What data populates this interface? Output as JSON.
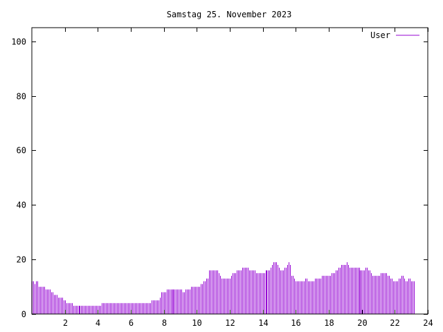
{
  "chart_data": {
    "type": "bar",
    "title": "Samstag 25. November 2023",
    "xlabel": "",
    "ylabel": "",
    "xlim": [
      0,
      24
    ],
    "ylim": [
      0,
      105
    ],
    "x_ticks": [
      2,
      4,
      6,
      8,
      10,
      12,
      14,
      16,
      18,
      20,
      22,
      24
    ],
    "y_ticks": [
      0,
      20,
      40,
      60,
      80,
      100
    ],
    "grid": false,
    "legend_position": "top-right",
    "series": [
      {
        "name": "User",
        "color": "#9400d3",
        "x_start": 0,
        "x_step": 0.0833,
        "values": [
          12,
          12,
          11,
          12,
          12,
          10,
          10,
          10,
          10,
          10,
          9,
          9,
          9,
          9,
          8,
          8,
          7,
          7,
          7,
          6,
          6,
          6,
          6,
          5,
          5,
          4,
          4,
          4,
          4,
          4,
          3,
          3,
          3,
          3,
          3,
          3,
          3,
          3,
          3,
          3,
          3,
          3,
          3,
          3,
          3,
          3,
          3,
          3,
          3,
          3,
          3,
          4,
          4,
          4,
          4,
          4,
          4,
          4,
          4,
          4,
          4,
          4,
          4,
          4,
          4,
          4,
          4,
          4,
          4,
          4,
          4,
          4,
          4,
          4,
          4,
          4,
          4,
          4,
          4,
          4,
          4,
          4,
          4,
          4,
          4,
          4,
          4,
          5,
          5,
          5,
          5,
          5,
          5,
          6,
          8,
          8,
          8,
          8,
          9,
          9,
          9,
          9,
          9,
          9,
          9,
          9,
          9,
          9,
          9,
          9,
          8,
          8,
          9,
          9,
          9,
          9,
          10,
          10,
          10,
          10,
          10,
          10,
          10,
          11,
          11,
          12,
          12,
          13,
          13,
          16,
          16,
          16,
          16,
          16,
          16,
          16,
          15,
          14,
          13,
          13,
          13,
          13,
          13,
          13,
          13,
          14,
          15,
          15,
          15,
          16,
          16,
          16,
          16,
          17,
          17,
          17,
          17,
          17,
          16,
          16,
          16,
          16,
          16,
          15,
          15,
          15,
          15,
          15,
          15,
          15,
          16,
          16,
          16,
          16,
          17,
          18,
          19,
          19,
          19,
          18,
          17,
          16,
          16,
          16,
          17,
          17,
          18,
          19,
          18,
          14,
          14,
          13,
          12,
          12,
          12,
          12,
          12,
          12,
          12,
          13,
          13,
          12,
          12,
          12,
          12,
          12,
          13,
          13,
          13,
          13,
          13,
          14,
          14,
          14,
          14,
          14,
          14,
          14,
          15,
          15,
          15,
          16,
          16,
          17,
          17,
          18,
          18,
          18,
          18,
          19,
          18,
          17,
          17,
          17,
          17,
          17,
          17,
          17,
          17,
          16,
          16,
          16,
          16,
          17,
          17,
          16,
          16,
          15,
          14,
          14,
          14,
          14,
          14,
          14,
          15,
          15,
          15,
          15,
          15,
          14,
          14,
          13,
          13,
          12,
          12,
          12,
          12,
          13,
          13,
          14,
          14,
          13,
          12,
          12,
          13,
          13,
          12,
          12,
          12
        ]
      }
    ]
  }
}
